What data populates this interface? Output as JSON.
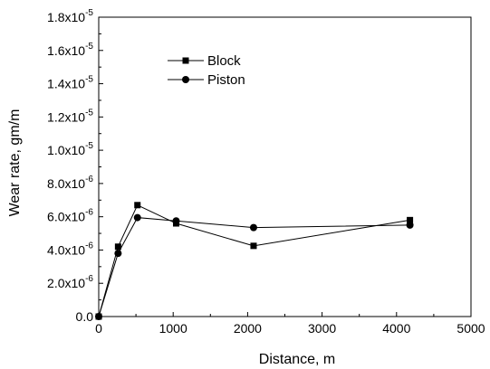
{
  "chart_data": {
    "type": "line",
    "title": "",
    "xlabel": "Distance, m",
    "ylabel": "Wear rate, gm/m",
    "xlim": [
      0,
      5000
    ],
    "ylim": [
      0,
      1.8e-05
    ],
    "x_ticks": [
      0,
      1000,
      2000,
      3000,
      4000,
      5000
    ],
    "x_tick_labels": [
      "0",
      "1000",
      "2000",
      "3000",
      "4000",
      "5000"
    ],
    "y_ticks": [
      0,
      2e-06,
      4e-06,
      6e-06,
      8e-06,
      1e-05,
      1.2e-05,
      1.4e-05,
      1.6e-05,
      1.8e-05
    ],
    "y_tick_labels": [
      {
        "mantissa": "0.0",
        "exponent": ""
      },
      {
        "mantissa": "2.0x10",
        "exponent": "-6"
      },
      {
        "mantissa": "4.0x10",
        "exponent": "-6"
      },
      {
        "mantissa": "6.0x10",
        "exponent": "-6"
      },
      {
        "mantissa": "8.0x10",
        "exponent": "-6"
      },
      {
        "mantissa": "1.0x10",
        "exponent": "-5"
      },
      {
        "mantissa": "1.2x10",
        "exponent": "-5"
      },
      {
        "mantissa": "1.4x10",
        "exponent": "-5"
      },
      {
        "mantissa": "1.6x10",
        "exponent": "-5"
      },
      {
        "mantissa": "1.8x10",
        "exponent": "-5"
      }
    ],
    "grid": false,
    "legend_position": "top-left",
    "series": [
      {
        "name": "Block",
        "marker": "square",
        "color": "#000000",
        "x": [
          0,
          260,
          520,
          1040,
          2080,
          4180
        ],
        "y": [
          0,
          4.2e-06,
          6.7e-06,
          5.6e-06,
          4.25e-06,
          5.8e-06
        ]
      },
      {
        "name": "Piston",
        "marker": "circle",
        "color": "#000000",
        "x": [
          0,
          260,
          520,
          1040,
          2080,
          4180
        ],
        "y": [
          0,
          3.8e-06,
          5.95e-06,
          5.75e-06,
          5.35e-06,
          5.5e-06
        ]
      }
    ]
  }
}
